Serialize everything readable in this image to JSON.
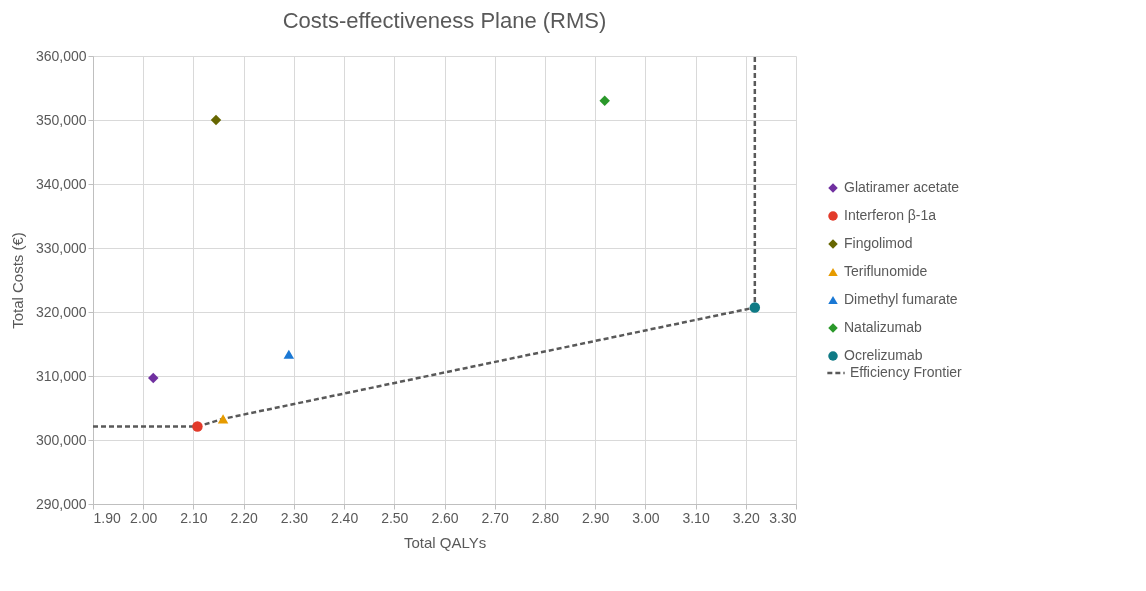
{
  "chart_data": {
    "type": "scatter",
    "title": "Costs-effectiveness  Plane (RMS)",
    "xlabel": "Total QALYs",
    "ylabel": "Total Costs (€)",
    "xlim": [
      1.9,
      3.3
    ],
    "xticks": [
      {
        "value": 1.9,
        "label": "1.90"
      },
      {
        "value": 2.0,
        "label": "2.00"
      },
      {
        "value": 2.1,
        "label": "2.10"
      },
      {
        "value": 2.2,
        "label": "2.20"
      },
      {
        "value": 2.3,
        "label": "2.30"
      },
      {
        "value": 2.4,
        "label": "2.40"
      },
      {
        "value": 2.5,
        "label": "2.50"
      },
      {
        "value": 2.6,
        "label": "2.60"
      },
      {
        "value": 2.7,
        "label": "2.70"
      },
      {
        "value": 2.8,
        "label": "2.80"
      },
      {
        "value": 2.9,
        "label": "2.90"
      },
      {
        "value": 3.0,
        "label": "3.00"
      },
      {
        "value": 3.1,
        "label": "3.10"
      },
      {
        "value": 3.2,
        "label": "3.20"
      },
      {
        "value": 3.3,
        "label": "3.30"
      }
    ],
    "ylim": [
      290000,
      360000
    ],
    "yticks": [
      {
        "value": 290000,
        "label": "290,000"
      },
      {
        "value": 300000,
        "label": "300,000"
      },
      {
        "value": 310000,
        "label": "310,000"
      },
      {
        "value": 320000,
        "label": "320,000"
      },
      {
        "value": 330000,
        "label": "330,000"
      },
      {
        "value": 340000,
        "label": "340,000"
      },
      {
        "value": 350000,
        "label": "350,000"
      },
      {
        "value": 360000,
        "label": "360,000"
      }
    ],
    "grid": true,
    "legend": "right",
    "series": [
      {
        "name": "Glatiramer acetate",
        "color": "#7030a0",
        "marker": "diamond",
        "x": [
          2.02
        ],
        "values": [
          309700
        ]
      },
      {
        "name": "Interferon β-1a",
        "color": "#e23a2a",
        "marker": "circle",
        "x": [
          2.108
        ],
        "values": [
          302100
        ]
      },
      {
        "name": "Fingolimod",
        "color": "#666600",
        "marker": "diamond",
        "x": [
          2.145
        ],
        "values": [
          350000
        ]
      },
      {
        "name": "Teriflunomide",
        "color": "#e69b00",
        "marker": "triangle",
        "x": [
          2.159
        ],
        "values": [
          303300
        ]
      },
      {
        "name": "Dimethyl fumarate",
        "color": "#1a78d4",
        "marker": "triangle",
        "x": [
          2.29
        ],
        "values": [
          313400
        ]
      },
      {
        "name": "Natalizumab",
        "color": "#2a982a",
        "marker": "diamond",
        "x": [
          2.919
        ],
        "values": [
          353000
        ]
      },
      {
        "name": "Ocrelizumab",
        "color": "#0f7a85",
        "marker": "circle",
        "x": [
          3.218
        ],
        "values": [
          320700
        ]
      },
      {
        "name": "Efficiency Frontier",
        "type": "line",
        "color": "#595959",
        "line_style": "dashed",
        "marker": "none",
        "x": [
          1.9,
          2.108,
          2.159,
          3.218,
          3.218
        ],
        "values": [
          302100,
          302100,
          303300,
          320700,
          360000
        ]
      }
    ]
  }
}
